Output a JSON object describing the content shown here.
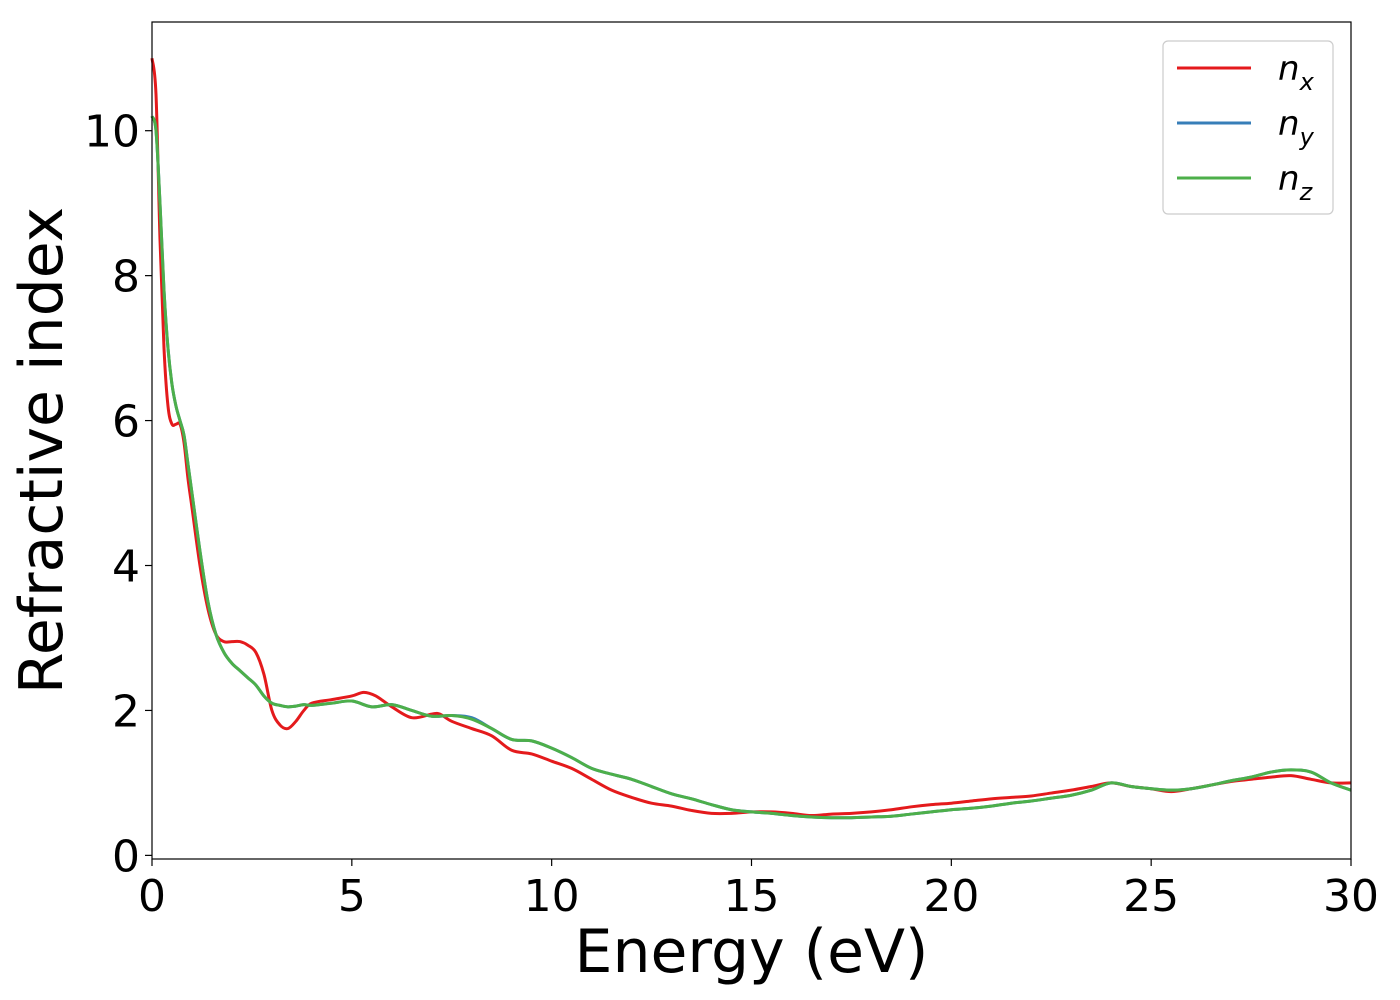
{
  "chart_data": {
    "type": "line",
    "xlabel": "Energy (eV)",
    "ylabel": "Refractive index",
    "xlim": [
      0,
      30
    ],
    "ylim": [
      -0.05,
      11.5
    ],
    "xticks": [
      "0",
      "5",
      "10",
      "15",
      "20",
      "25",
      "30"
    ],
    "yticks": [
      "0",
      "2",
      "4",
      "6",
      "8",
      "10"
    ],
    "grid": false,
    "legend_position": "top-right",
    "series": [
      {
        "name": "n",
        "subscript": "x",
        "color": "#e41a1c",
        "x": [
          0,
          0.1,
          0.2,
          0.3,
          0.4,
          0.5,
          0.6,
          0.7,
          0.8,
          0.9,
          1.0,
          1.2,
          1.4,
          1.6,
          1.8,
          2.0,
          2.2,
          2.4,
          2.6,
          2.8,
          3.0,
          3.2,
          3.4,
          3.6,
          3.8,
          4.0,
          4.5,
          5.0,
          5.3,
          5.6,
          6.0,
          6.5,
          7.0,
          7.2,
          7.5,
          8.0,
          8.5,
          9.0,
          9.5,
          10.0,
          10.5,
          11.0,
          11.5,
          12.0,
          12.5,
          13.0,
          13.5,
          14.0,
          14.5,
          15.0,
          15.5,
          16.0,
          16.5,
          17.0,
          17.5,
          18.0,
          18.5,
          19.0,
          19.5,
          20.0,
          20.5,
          21.0,
          21.5,
          22.0,
          22.5,
          23.0,
          23.5,
          24.0,
          24.5,
          25.0,
          25.5,
          26.0,
          26.5,
          27.0,
          27.5,
          28.0,
          28.5,
          29.0,
          29.5,
          30.0
        ],
        "y": [
          11.0,
          10.5,
          8.5,
          7.0,
          6.2,
          5.95,
          5.95,
          5.95,
          5.7,
          5.2,
          4.8,
          4.0,
          3.4,
          3.05,
          2.95,
          2.95,
          2.95,
          2.9,
          2.8,
          2.5,
          2.0,
          1.8,
          1.75,
          1.85,
          2.0,
          2.1,
          2.15,
          2.2,
          2.25,
          2.2,
          2.05,
          1.9,
          1.95,
          1.95,
          1.85,
          1.75,
          1.65,
          1.45,
          1.4,
          1.3,
          1.2,
          1.05,
          0.9,
          0.8,
          0.72,
          0.68,
          0.62,
          0.58,
          0.58,
          0.6,
          0.6,
          0.58,
          0.55,
          0.57,
          0.58,
          0.6,
          0.63,
          0.67,
          0.7,
          0.72,
          0.75,
          0.78,
          0.8,
          0.82,
          0.86,
          0.9,
          0.95,
          1.0,
          0.95,
          0.92,
          0.88,
          0.92,
          0.97,
          1.02,
          1.05,
          1.08,
          1.1,
          1.05,
          1.0,
          1.0
        ]
      },
      {
        "name": "n",
        "subscript": "y",
        "color": "#377eb8",
        "x": [
          0,
          0.1,
          0.2,
          0.3,
          0.4,
          0.5,
          0.6,
          0.7,
          0.8,
          0.9,
          1.0,
          1.2,
          1.4,
          1.6,
          1.8,
          2.0,
          2.2,
          2.4,
          2.6,
          2.8,
          3.0,
          3.2,
          3.4,
          3.6,
          3.8,
          4.0,
          4.5,
          5.0,
          5.5,
          6.0,
          6.5,
          7.0,
          7.5,
          8.0,
          8.5,
          9.0,
          9.5,
          10.0,
          10.5,
          11.0,
          11.5,
          12.0,
          12.5,
          13.0,
          13.5,
          14.0,
          14.5,
          15.0,
          15.5,
          16.0,
          16.5,
          17.0,
          17.5,
          18.0,
          18.5,
          19.0,
          19.5,
          20.0,
          20.5,
          21.0,
          21.5,
          22.0,
          22.5,
          23.0,
          23.5,
          24.0,
          24.5,
          25.0,
          25.5,
          26.0,
          26.5,
          27.0,
          27.5,
          28.0,
          28.5,
          29.0,
          29.5,
          30.0
        ],
        "y": [
          10.2,
          10.0,
          9.0,
          7.8,
          7.0,
          6.5,
          6.2,
          6.0,
          5.8,
          5.4,
          5.0,
          4.2,
          3.5,
          3.05,
          2.8,
          2.65,
          2.55,
          2.45,
          2.35,
          2.2,
          2.1,
          2.07,
          2.05,
          2.06,
          2.08,
          2.07,
          2.1,
          2.13,
          2.05,
          2.08,
          2.0,
          1.92,
          1.93,
          1.9,
          1.75,
          1.6,
          1.58,
          1.48,
          1.35,
          1.2,
          1.12,
          1.05,
          0.95,
          0.85,
          0.78,
          0.7,
          0.63,
          0.6,
          0.58,
          0.55,
          0.53,
          0.52,
          0.52,
          0.53,
          0.54,
          0.57,
          0.6,
          0.63,
          0.65,
          0.68,
          0.72,
          0.75,
          0.79,
          0.83,
          0.9,
          1.0,
          0.95,
          0.92,
          0.9,
          0.92,
          0.97,
          1.03,
          1.08,
          1.15,
          1.18,
          1.15,
          1.0,
          0.9
        ]
      },
      {
        "name": "n",
        "subscript": "z",
        "color": "#4daf4a",
        "x": [
          0,
          0.1,
          0.2,
          0.3,
          0.4,
          0.5,
          0.6,
          0.7,
          0.8,
          0.9,
          1.0,
          1.2,
          1.4,
          1.6,
          1.8,
          2.0,
          2.2,
          2.4,
          2.6,
          2.8,
          3.0,
          3.2,
          3.4,
          3.6,
          3.8,
          4.0,
          4.5,
          5.0,
          5.5,
          6.0,
          6.5,
          7.0,
          7.5,
          8.0,
          8.5,
          9.0,
          9.5,
          10.0,
          10.5,
          11.0,
          11.5,
          12.0,
          12.5,
          13.0,
          13.5,
          14.0,
          14.5,
          15.0,
          15.5,
          16.0,
          16.5,
          17.0,
          17.5,
          18.0,
          18.5,
          19.0,
          19.5,
          20.0,
          20.5,
          21.0,
          21.5,
          22.0,
          22.5,
          23.0,
          23.5,
          24.0,
          24.5,
          25.0,
          25.5,
          26.0,
          26.5,
          27.0,
          27.5,
          28.0,
          28.5,
          29.0,
          29.5,
          30.0
        ],
        "y": [
          10.2,
          10.0,
          9.0,
          7.8,
          7.0,
          6.5,
          6.2,
          6.0,
          5.8,
          5.4,
          5.0,
          4.2,
          3.5,
          3.05,
          2.8,
          2.65,
          2.55,
          2.45,
          2.35,
          2.2,
          2.1,
          2.07,
          2.05,
          2.06,
          2.08,
          2.07,
          2.1,
          2.13,
          2.05,
          2.08,
          2.0,
          1.92,
          1.93,
          1.88,
          1.75,
          1.6,
          1.58,
          1.48,
          1.35,
          1.2,
          1.12,
          1.05,
          0.95,
          0.85,
          0.78,
          0.7,
          0.63,
          0.6,
          0.58,
          0.55,
          0.53,
          0.52,
          0.52,
          0.53,
          0.54,
          0.57,
          0.6,
          0.63,
          0.65,
          0.68,
          0.72,
          0.75,
          0.79,
          0.83,
          0.9,
          1.0,
          0.95,
          0.92,
          0.9,
          0.92,
          0.97,
          1.03,
          1.08,
          1.15,
          1.18,
          1.15,
          1.0,
          0.9
        ]
      }
    ]
  }
}
